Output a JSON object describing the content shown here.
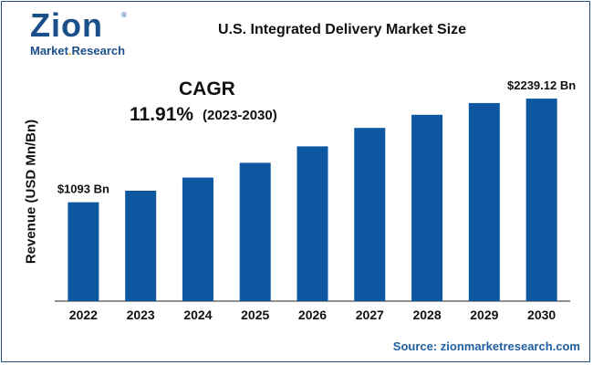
{
  "brand": {
    "logo_word": "Zion",
    "logo_sub_a": "Market",
    "logo_sub_dot": ".",
    "logo_sub_b": "Research",
    "logo_reg": "®"
  },
  "title": "U.S. Integrated Delivery Market Size",
  "cagr": {
    "label": "CAGR",
    "value": "11.91%",
    "period": "(2023-2030)"
  },
  "source": "Source: zionmarketresearch.com",
  "colors": {
    "bar": "#0c57a0",
    "frame": "#1f4f86",
    "accent": "#f3a21b"
  },
  "chart_data": {
    "type": "bar",
    "title": "U.S. Integrated Delivery Market Size",
    "ylabel": "Revenue (USD Mn/Bn)",
    "xlabel": "",
    "categories": [
      "2022",
      "2023",
      "2024",
      "2025",
      "2026",
      "2027",
      "2028",
      "2029",
      "2030"
    ],
    "values": [
      1093,
      1221,
      1366,
      1529,
      1711,
      1915,
      2060,
      2190,
      2239.12
    ],
    "data_labels": [
      "$1093 Bn",
      "",
      "",
      "",
      "",
      "",
      "",
      "",
      "$2239.12 Bn"
    ],
    "ylim": [
      0,
      2280
    ],
    "grid": false,
    "legend": "none"
  }
}
